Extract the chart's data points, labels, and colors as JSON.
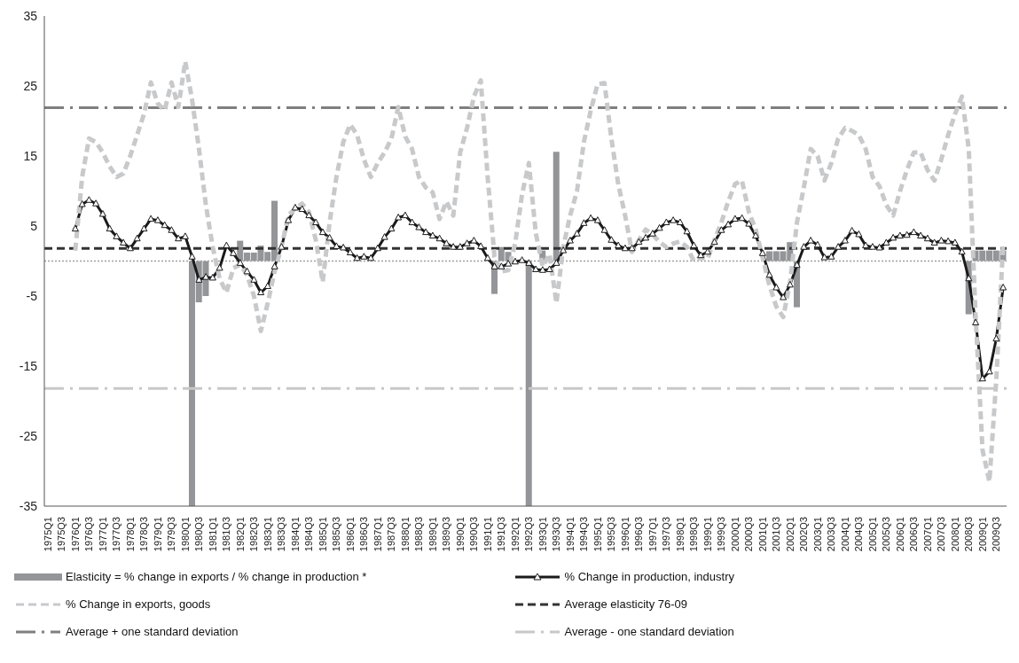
{
  "chart_data": {
    "type": "bar",
    "categories": [
      "1975Q1",
      null,
      "1975Q3",
      null,
      "1976Q1",
      null,
      "1976Q3",
      null,
      "1977Q1",
      null,
      "1977Q3",
      null,
      "1978Q1",
      null,
      "1978Q3",
      null,
      "1979Q1",
      null,
      "1979Q3",
      null,
      "1980Q1",
      null,
      "1980Q3",
      null,
      "1981Q1",
      null,
      "1981Q3",
      null,
      "1982Q1",
      null,
      "1982Q3",
      null,
      "1983Q1",
      null,
      "1983Q3",
      null,
      "1984Q1",
      null,
      "1984Q3",
      null,
      "1985Q1",
      null,
      "1985Q3",
      null,
      "1986Q1",
      null,
      "1986Q3",
      null,
      "1987Q1",
      null,
      "1987Q3",
      null,
      "1988Q1",
      null,
      "1988Q3",
      null,
      "1989Q1",
      null,
      "1989Q3",
      null,
      "1990Q1",
      null,
      "1990Q3",
      null,
      "1991Q1",
      null,
      "1991Q3",
      null,
      "1992Q1",
      null,
      "1992Q3",
      null,
      "1993Q1",
      null,
      "1993Q3",
      null,
      "1994Q1",
      null,
      "1994Q3",
      null,
      "1995Q1",
      null,
      "1995Q3",
      null,
      "1996Q1",
      null,
      "1996Q3",
      null,
      "1997Q1",
      null,
      "1997Q3",
      null,
      "1998Q1",
      null,
      "1998Q3",
      null,
      "1999Q1",
      null,
      "1999Q3",
      null,
      "2000Q1",
      null,
      "2000Q3",
      null,
      "2001Q1",
      null,
      "2001Q3",
      null,
      "2002Q1",
      null,
      "2002Q3",
      null,
      "2003Q1",
      null,
      "2003Q3",
      null,
      "2004Q1",
      null,
      "2004Q3",
      null,
      "2005Q1",
      null,
      "2005Q3",
      null,
      "2006Q1",
      null,
      "2006Q3",
      null,
      "2007Q1",
      null,
      "2007Q3",
      null,
      "2008Q1",
      null,
      "2008Q3",
      null,
      "2009Q1",
      null,
      "2009Q3",
      null
    ],
    "series": [
      {
        "name": "Elasticity = % change in exports / % change in production *",
        "type": "bar",
        "color": "#939598",
        "values": [
          null,
          null,
          null,
          null,
          null,
          null,
          null,
          null,
          null,
          null,
          null,
          null,
          null,
          null,
          null,
          null,
          null,
          null,
          null,
          null,
          null,
          -35,
          -5.9,
          -5.0,
          null,
          null,
          null,
          null,
          2.9,
          1.2,
          1.2,
          2.2,
          1.3,
          8.6,
          null,
          null,
          null,
          null,
          null,
          null,
          null,
          null,
          null,
          null,
          null,
          null,
          null,
          null,
          null,
          null,
          null,
          null,
          null,
          null,
          null,
          null,
          null,
          null,
          null,
          null,
          null,
          null,
          null,
          null,
          null,
          -4.7,
          2.0,
          1.3,
          null,
          null,
          -35,
          null,
          1.5,
          null,
          15.6,
          null,
          null,
          null,
          null,
          null,
          null,
          null,
          null,
          null,
          null,
          null,
          null,
          null,
          null,
          null,
          null,
          null,
          null,
          null,
          null,
          null,
          null,
          null,
          null,
          null,
          null,
          null,
          null,
          null,
          null,
          1.4,
          1.4,
          1.4,
          2.7,
          -6.6,
          null,
          null,
          null,
          null,
          null,
          null,
          null,
          null,
          null,
          null,
          null,
          null,
          null,
          null,
          null,
          null,
          null,
          null,
          null,
          null,
          null,
          null,
          null,
          null,
          -7.6,
          1.5,
          1.5,
          1.5,
          1.5,
          1.5
        ]
      },
      {
        "name": "% Change in production, industry",
        "type": "line",
        "color": "#1a1a1a",
        "marker": "triangle",
        "line_style": "solid",
        "values": [
          null,
          null,
          null,
          null,
          4.6,
          8.1,
          8.7,
          8.2,
          6.7,
          4.6,
          3.5,
          2.6,
          1.8,
          3.2,
          4.6,
          6.0,
          5.8,
          5.1,
          4.4,
          3.2,
          3.5,
          0.6,
          -2.7,
          -2.3,
          -2.4,
          -1.0,
          2.2,
          1.1,
          -0.3,
          -1.5,
          -2.7,
          -4.5,
          -3.6,
          -0.8,
          2.0,
          5.8,
          7.6,
          7.4,
          6.5,
          5.5,
          4.1,
          3.3,
          2.1,
          1.9,
          1.2,
          0.4,
          0.6,
          0.4,
          1.8,
          3.4,
          4.6,
          6.2,
          6.5,
          5.5,
          4.8,
          4.1,
          3.6,
          3.2,
          2.5,
          2.0,
          2.0,
          2.5,
          2.9,
          2.1,
          0.4,
          -0.8,
          -0.8,
          -0.4,
          -0.1,
          0.1,
          -0.3,
          -1.2,
          -1.3,
          -1.2,
          -0.3,
          1.5,
          2.9,
          3.9,
          5.4,
          6.1,
          5.8,
          4.4,
          3.0,
          2.2,
          1.8,
          1.8,
          2.7,
          3.3,
          3.9,
          4.7,
          5.5,
          5.8,
          5.5,
          4.2,
          2.2,
          0.8,
          1.3,
          2.7,
          4.4,
          5.2,
          6.0,
          6.1,
          5.3,
          3.6,
          1.1,
          -2.0,
          -3.8,
          -5.2,
          -3.4,
          -0.6,
          2.0,
          2.9,
          2.3,
          0.5,
          0.6,
          2.0,
          2.9,
          4.3,
          3.8,
          2.2,
          2.0,
          1.9,
          2.6,
          3.3,
          3.6,
          3.7,
          4.1,
          3.6,
          3.2,
          2.6,
          2.9,
          2.8,
          2.6,
          1.3,
          -2.5,
          -8.8,
          -16.8,
          -15.8,
          -11.1,
          -3.8
        ]
      },
      {
        "name": "% Change in exports, goods",
        "type": "line",
        "color": "#c8c9cb",
        "marker": "none",
        "line_style": "dashed",
        "values": [
          null,
          null,
          null,
          null,
          1.5,
          12,
          17.5,
          17,
          15.5,
          13.5,
          12,
          12.5,
          15,
          18,
          21,
          25.5,
          22.5,
          21.5,
          25.5,
          22,
          28.5,
          23,
          16,
          8,
          2,
          -2.5,
          -4.5,
          -1,
          -0.5,
          -2,
          -5,
          -10,
          -6,
          -1.5,
          2,
          6.5,
          7.5,
          8.2,
          7,
          3,
          -3,
          5.5,
          12,
          17,
          19.5,
          18,
          14.5,
          12,
          14,
          15.5,
          17.5,
          22,
          17.8,
          16,
          12,
          10.5,
          9.8,
          6,
          8.5,
          6.5,
          15.5,
          19,
          23.5,
          25.8,
          12,
          0.6,
          -1.5,
          -1.3,
          2.5,
          9.5,
          14,
          4,
          -0.8,
          1,
          -6,
          2,
          6.5,
          10,
          17,
          21.5,
          25.3,
          25.4,
          17.5,
          11,
          6.5,
          1.3,
          3,
          4.5,
          3.8,
          2.7,
          2,
          2.5,
          2.8,
          2,
          0,
          0.5,
          0.3,
          3,
          5.5,
          8.5,
          11,
          11.5,
          7,
          4.5,
          0.5,
          -3.5,
          -6.5,
          -8,
          -3,
          5.5,
          10.5,
          16,
          15,
          11.5,
          14,
          17.5,
          19,
          18.6,
          18,
          16,
          12,
          10.7,
          8,
          6.5,
          10,
          13,
          15.5,
          15.5,
          13,
          11.5,
          14.5,
          18,
          21,
          23.5,
          16,
          -8,
          -27,
          -31.5,
          -17,
          2.5
        ]
      }
    ],
    "ref_lines": [
      {
        "axis": "y",
        "value": 0,
        "color": "#a0a0a0",
        "line_style": "dotted"
      },
      {
        "axis": "y",
        "value": 1.8,
        "label": "Average elasticity 76-09",
        "color": "#333333",
        "line_style": "dashed"
      },
      {
        "axis": "y",
        "value": 21.9,
        "label": "Average + one standard deviation",
        "color": "#7f7f7f",
        "line_style": "dashdot"
      },
      {
        "axis": "y",
        "value": -18.2,
        "label": "Average - one standard deviation",
        "color": "#c8c8c8",
        "line_style": "dashdot"
      }
    ],
    "ylim": [
      -35,
      35
    ],
    "yticks": [
      -35,
      -25,
      -15,
      -5,
      5,
      15,
      25,
      35
    ],
    "legend": "bottom"
  }
}
